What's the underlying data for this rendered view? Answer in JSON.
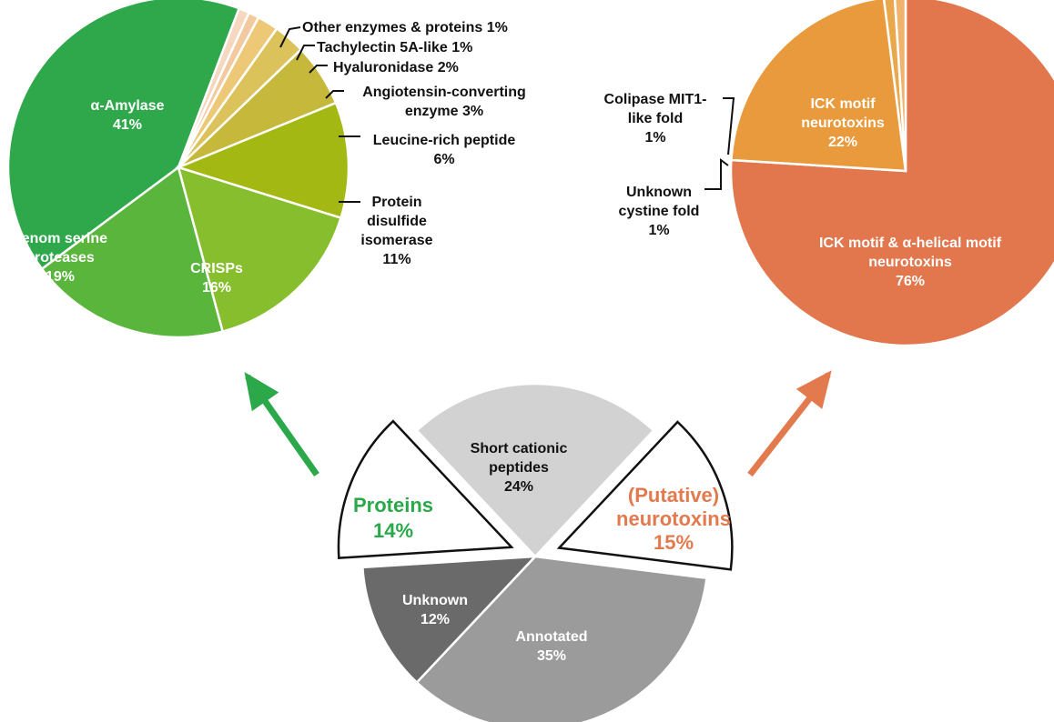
{
  "chart_data": [
    {
      "id": "proteins",
      "type": "pie",
      "slices": [
        {
          "label": "α-Amylase",
          "value": 41,
          "pct": "41%",
          "color": "#2ea84a"
        },
        {
          "label": "Venom serine proteases",
          "value": 19,
          "pct": "19%",
          "color": "#5ab53c"
        },
        {
          "label": "CRISPs",
          "value": 16,
          "pct": "16%",
          "color": "#86be2e"
        },
        {
          "label": "Protein disulfide isomerase",
          "value": 11,
          "pct": "11%",
          "color": "#a3b812"
        },
        {
          "label": "Leucine-rich peptide",
          "value": 6,
          "pct": "6%",
          "color": "#c5b83a"
        },
        {
          "label": "Angiotensin-converting enzyme",
          "value": 3,
          "pct": "3%",
          "color": "#dcc25a"
        },
        {
          "label": "Hyaluronidase",
          "value": 2,
          "pct": "2%",
          "color": "#ecc877"
        },
        {
          "label": "Tachylectin 5A-like",
          "value": 1,
          "pct": "1%",
          "color": "#f3c9a0"
        },
        {
          "label": "Other enzymes & proteins",
          "value": 1,
          "pct": "1%",
          "color": "#f6d7bf"
        }
      ]
    },
    {
      "id": "neurotoxins",
      "type": "pie",
      "slices": [
        {
          "label": "ICK motif & α-helical motif neurotoxins",
          "value": 76,
          "pct": "76%",
          "color": "#e2774e"
        },
        {
          "label": "ICK motif neurotoxins",
          "value": 22,
          "pct": "22%",
          "color": "#e89a3c"
        },
        {
          "label": "Colipase MIT1-like fold",
          "value": 1,
          "pct": "1%",
          "color": "#eaa84d"
        },
        {
          "label": "Unknown cystine fold",
          "value": 1,
          "pct": "1%",
          "color": "#efb36c"
        }
      ]
    },
    {
      "id": "overview",
      "type": "pie",
      "slices": [
        {
          "label": "Short cationic peptides",
          "value": 24,
          "pct": "24%",
          "color": "#d2d2d2"
        },
        {
          "label": "(Putative) neurotoxins",
          "value": 15,
          "pct": "15%",
          "color": "#ffffff",
          "exploded": true
        },
        {
          "label": "Annotated",
          "value": 35,
          "pct": "35%",
          "color": "#9b9b9b"
        },
        {
          "label": "Unknown",
          "value": 12,
          "pct": "12%",
          "color": "#6a6a6a"
        },
        {
          "label": "Proteins",
          "value": 14,
          "pct": "14%",
          "color": "#ffffff",
          "exploded": true
        }
      ]
    }
  ],
  "labels": {
    "amylase": [
      "α-Amylase",
      "41%"
    ],
    "serine": [
      "Venom serine",
      "proteases",
      "19%"
    ],
    "crisps": [
      "CRISPs",
      "16%"
    ],
    "pdi": [
      "Protein",
      "disulfide",
      "isomerase",
      "11%"
    ],
    "leucine": [
      "Leucine-rich peptide",
      "6%"
    ],
    "ace": [
      "Angiotensin-converting",
      "enzyme 3%"
    ],
    "hyal": "Hyaluronidase 2%",
    "tachy": "Tachylectin 5A-like 1%",
    "other": "Other enzymes & proteins 1%",
    "ick_helical": [
      "ICK motif & α-helical motif",
      "neurotoxins",
      "76%"
    ],
    "ick": [
      "ICK motif",
      "neurotoxins",
      "22%"
    ],
    "colipase": [
      "Colipase MIT1-",
      "like fold",
      "1%"
    ],
    "unknown_fold": [
      "Unknown",
      "cystine fold",
      "1%"
    ],
    "short_cationic": [
      "Short cationic",
      "peptides",
      "24%"
    ],
    "proteins_big": [
      "Proteins",
      "14%"
    ],
    "neuro_big": [
      "(Putative)",
      "neurotoxins",
      "15%"
    ],
    "unknown": [
      "Unknown",
      "12%"
    ],
    "annotated": [
      "Annotated",
      "35%"
    ]
  },
  "colors": {
    "arrow_left": "#2aa84a",
    "arrow_right": "#e27a4e"
  }
}
